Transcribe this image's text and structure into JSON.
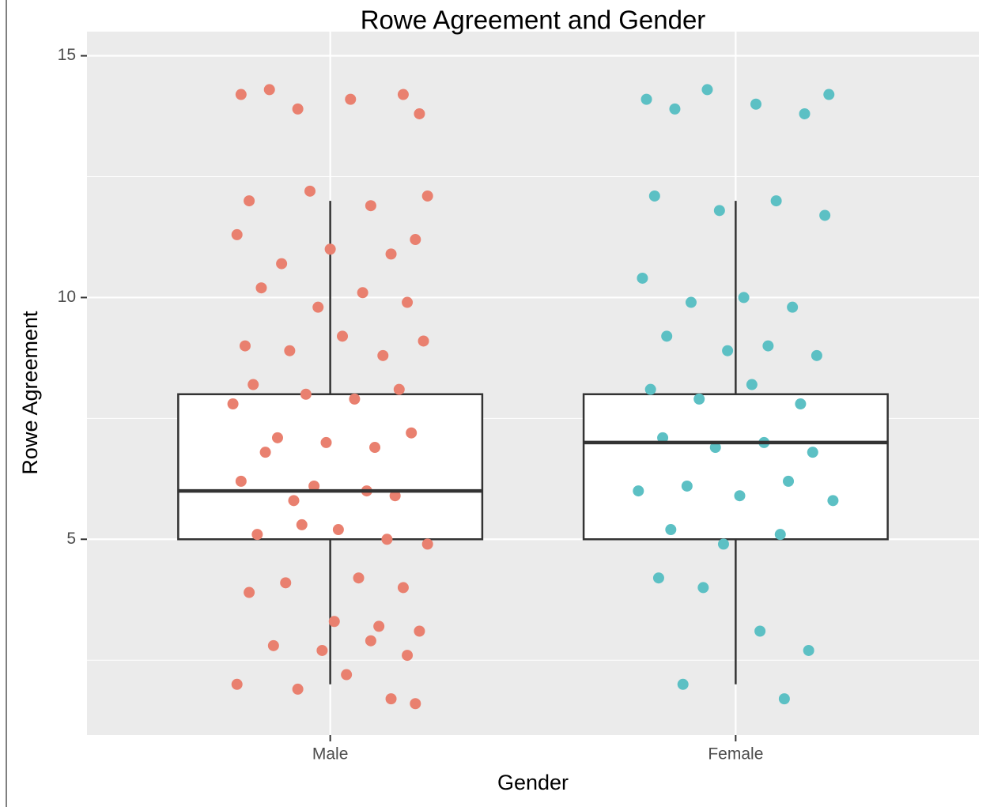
{
  "chart_data": {
    "type": "box",
    "title": "Rowe Agreement and Gender",
    "x_label": "Gender",
    "y_label": "Rowe Agreement",
    "categories": [
      "Male",
      "Female"
    ],
    "xlim": [
      0.4,
      2.6
    ],
    "ylim": [
      0.95,
      15.5
    ],
    "yticks": [
      5,
      10,
      15
    ],
    "minor_yticks": [
      2.5,
      7.5,
      12.5
    ],
    "grid": true,
    "boxes": [
      {
        "whisker_low": 2,
        "q1": 5,
        "median": 6,
        "q3": 8,
        "whisker_high": 12
      },
      {
        "whisker_low": 2,
        "q1": 5,
        "median": 7,
        "q3": 8,
        "whisker_high": 12
      }
    ],
    "series": [
      {
        "name": "Male",
        "color": "#E9806F",
        "x": [
          0.78,
          0.85,
          0.92,
          1.05,
          1.18,
          1.22,
          0.8,
          0.95,
          1.1,
          1.24,
          0.77,
          0.88,
          1.0,
          1.15,
          1.21,
          0.83,
          0.97,
          1.08,
          1.19,
          0.79,
          0.9,
          1.03,
          1.13,
          1.23,
          0.81,
          0.94,
          1.06,
          1.17,
          0.76,
          0.87,
          0.99,
          1.11,
          1.2,
          0.84,
          0.96,
          1.09,
          1.16,
          0.78,
          0.91,
          1.02,
          1.14,
          1.24,
          0.82,
          0.93,
          1.07,
          1.18,
          0.8,
          0.89,
          1.01,
          1.12,
          1.22,
          0.86,
          0.98,
          1.1,
          1.19,
          0.77,
          0.92,
          1.04,
          1.15,
          1.21
        ],
        "values": [
          14.2,
          14.3,
          13.9,
          14.1,
          14.2,
          13.8,
          12.0,
          12.2,
          11.9,
          12.1,
          11.3,
          10.7,
          11.0,
          10.9,
          11.2,
          10.2,
          9.8,
          10.1,
          9.9,
          9.0,
          8.9,
          9.2,
          8.8,
          9.1,
          8.2,
          8.0,
          7.9,
          8.1,
          7.8,
          7.1,
          7.0,
          6.9,
          7.2,
          6.8,
          6.1,
          6.0,
          5.9,
          6.2,
          5.8,
          5.2,
          5.0,
          4.9,
          5.1,
          5.3,
          4.2,
          4.0,
          3.9,
          4.1,
          3.3,
          3.2,
          3.1,
          2.8,
          2.7,
          2.9,
          2.6,
          2.0,
          1.9,
          2.2,
          1.7,
          1.6
        ]
      },
      {
        "name": "Female",
        "color": "#5CC0C4",
        "x": [
          1.78,
          1.85,
          1.93,
          2.05,
          2.17,
          2.23,
          1.8,
          1.96,
          2.1,
          2.22,
          1.77,
          1.89,
          2.02,
          2.14,
          1.83,
          1.98,
          2.08,
          2.2,
          1.79,
          1.91,
          2.04,
          2.16,
          1.82,
          1.95,
          2.07,
          2.19,
          1.76,
          1.88,
          2.01,
          2.13,
          2.24,
          1.84,
          1.97,
          2.11,
          1.81,
          1.92,
          2.06,
          2.18,
          1.87,
          2.12
        ],
        "values": [
          14.1,
          13.9,
          14.3,
          14.0,
          13.8,
          14.2,
          12.1,
          11.8,
          12.0,
          11.7,
          10.4,
          9.9,
          10.0,
          9.8,
          9.2,
          8.9,
          9.0,
          8.8,
          8.1,
          7.9,
          8.2,
          7.8,
          7.1,
          6.9,
          7.0,
          6.8,
          6.0,
          6.1,
          5.9,
          6.2,
          5.8,
          5.2,
          4.9,
          5.1,
          4.2,
          4.0,
          3.1,
          2.7,
          2.0,
          1.7
        ]
      }
    ]
  }
}
